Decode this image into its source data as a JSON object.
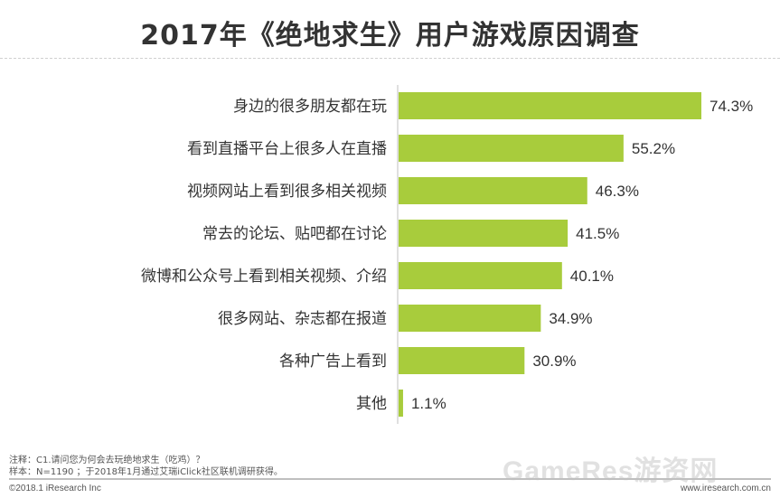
{
  "title": "2017年《绝地求生》用户游戏原因调查",
  "notes": {
    "line1": "注释：C1.请问您为何会去玩绝地求生（吃鸡）？",
    "line2": "样本：N=1190 ；于2018年1月通过艾瑞iClick社区联机调研获得。"
  },
  "footer": {
    "left": "©2018.1 iResearch Inc",
    "right": "www.iresearch.com.cn"
  },
  "watermark": "GameRes游资网",
  "colors": {
    "bar": "#a8cc3c",
    "text": "#333333"
  },
  "chart_data": {
    "type": "bar",
    "orientation": "horizontal",
    "categories": [
      "身边的很多朋友都在玩",
      "看到直播平台上很多人在直播",
      "视频网站上看到很多相关视频",
      "常去的论坛、贴吧都在讨论",
      "微博和公众号上看到相关视频、介绍",
      "很多网站、杂志都在报道",
      "各种广告上看到",
      "其他"
    ],
    "values": [
      74.3,
      55.2,
      46.3,
      41.5,
      40.1,
      34.9,
      30.9,
      1.1
    ],
    "value_labels": [
      "74.3%",
      "55.2%",
      "46.3%",
      "41.5%",
      "40.1%",
      "34.9%",
      "30.9%",
      "1.1%"
    ],
    "xlim": [
      0,
      74.3
    ],
    "grid": false,
    "legend": "none"
  }
}
